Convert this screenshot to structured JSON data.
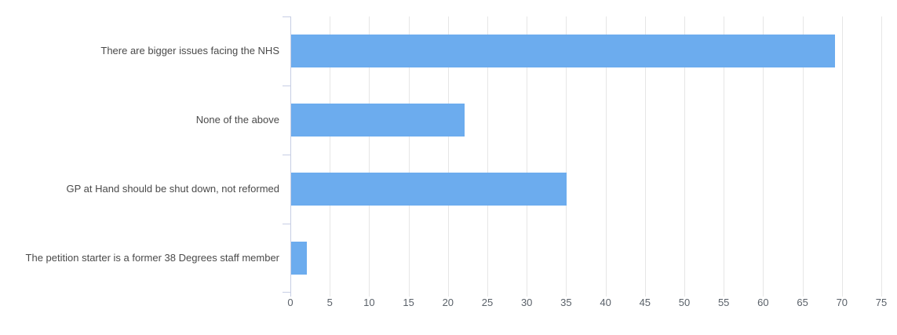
{
  "chart_data": {
    "type": "bar",
    "orientation": "horizontal",
    "title": "",
    "xlabel": "",
    "ylabel": "",
    "categories": [
      "There are bigger issues facing the NHS",
      "None of the above",
      "GP at Hand should be shut down, not reformed",
      "The petition starter is a former 38 Degrees staff member"
    ],
    "values": [
      69,
      22,
      35,
      2
    ],
    "xlim": [
      0,
      75
    ],
    "x_ticks": [
      0,
      5,
      10,
      15,
      20,
      25,
      30,
      35,
      40,
      45,
      50,
      55,
      60,
      65,
      70,
      75
    ],
    "grid": true,
    "legend": "none",
    "colors": {
      "bar": "#6CACEE",
      "gridline": "#E6E6E6",
      "axis": "#C7CEE4",
      "category_label_text": "#4A4A4A",
      "tick_label_text": "#5A6169",
      "background": "#FFFFFF"
    }
  }
}
